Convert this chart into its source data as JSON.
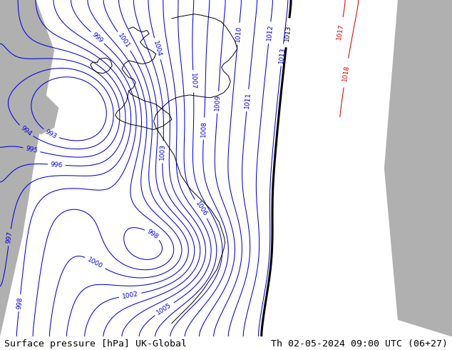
{
  "title_left": "Surface pressure [hPa] UK-Global",
  "title_right": "Th 02-05-2024 09:00 UTC (06+27)",
  "fig_width": 6.34,
  "fig_height": 4.9,
  "dpi": 100,
  "bg_green": "#b5e8a0",
  "bg_gray": "#b0b0b0",
  "contour_blue": "#0000dd",
  "contour_black": "#000000",
  "contour_red": "#dd0000",
  "label_fontsize": 6.5,
  "footer_fontsize": 9.5
}
